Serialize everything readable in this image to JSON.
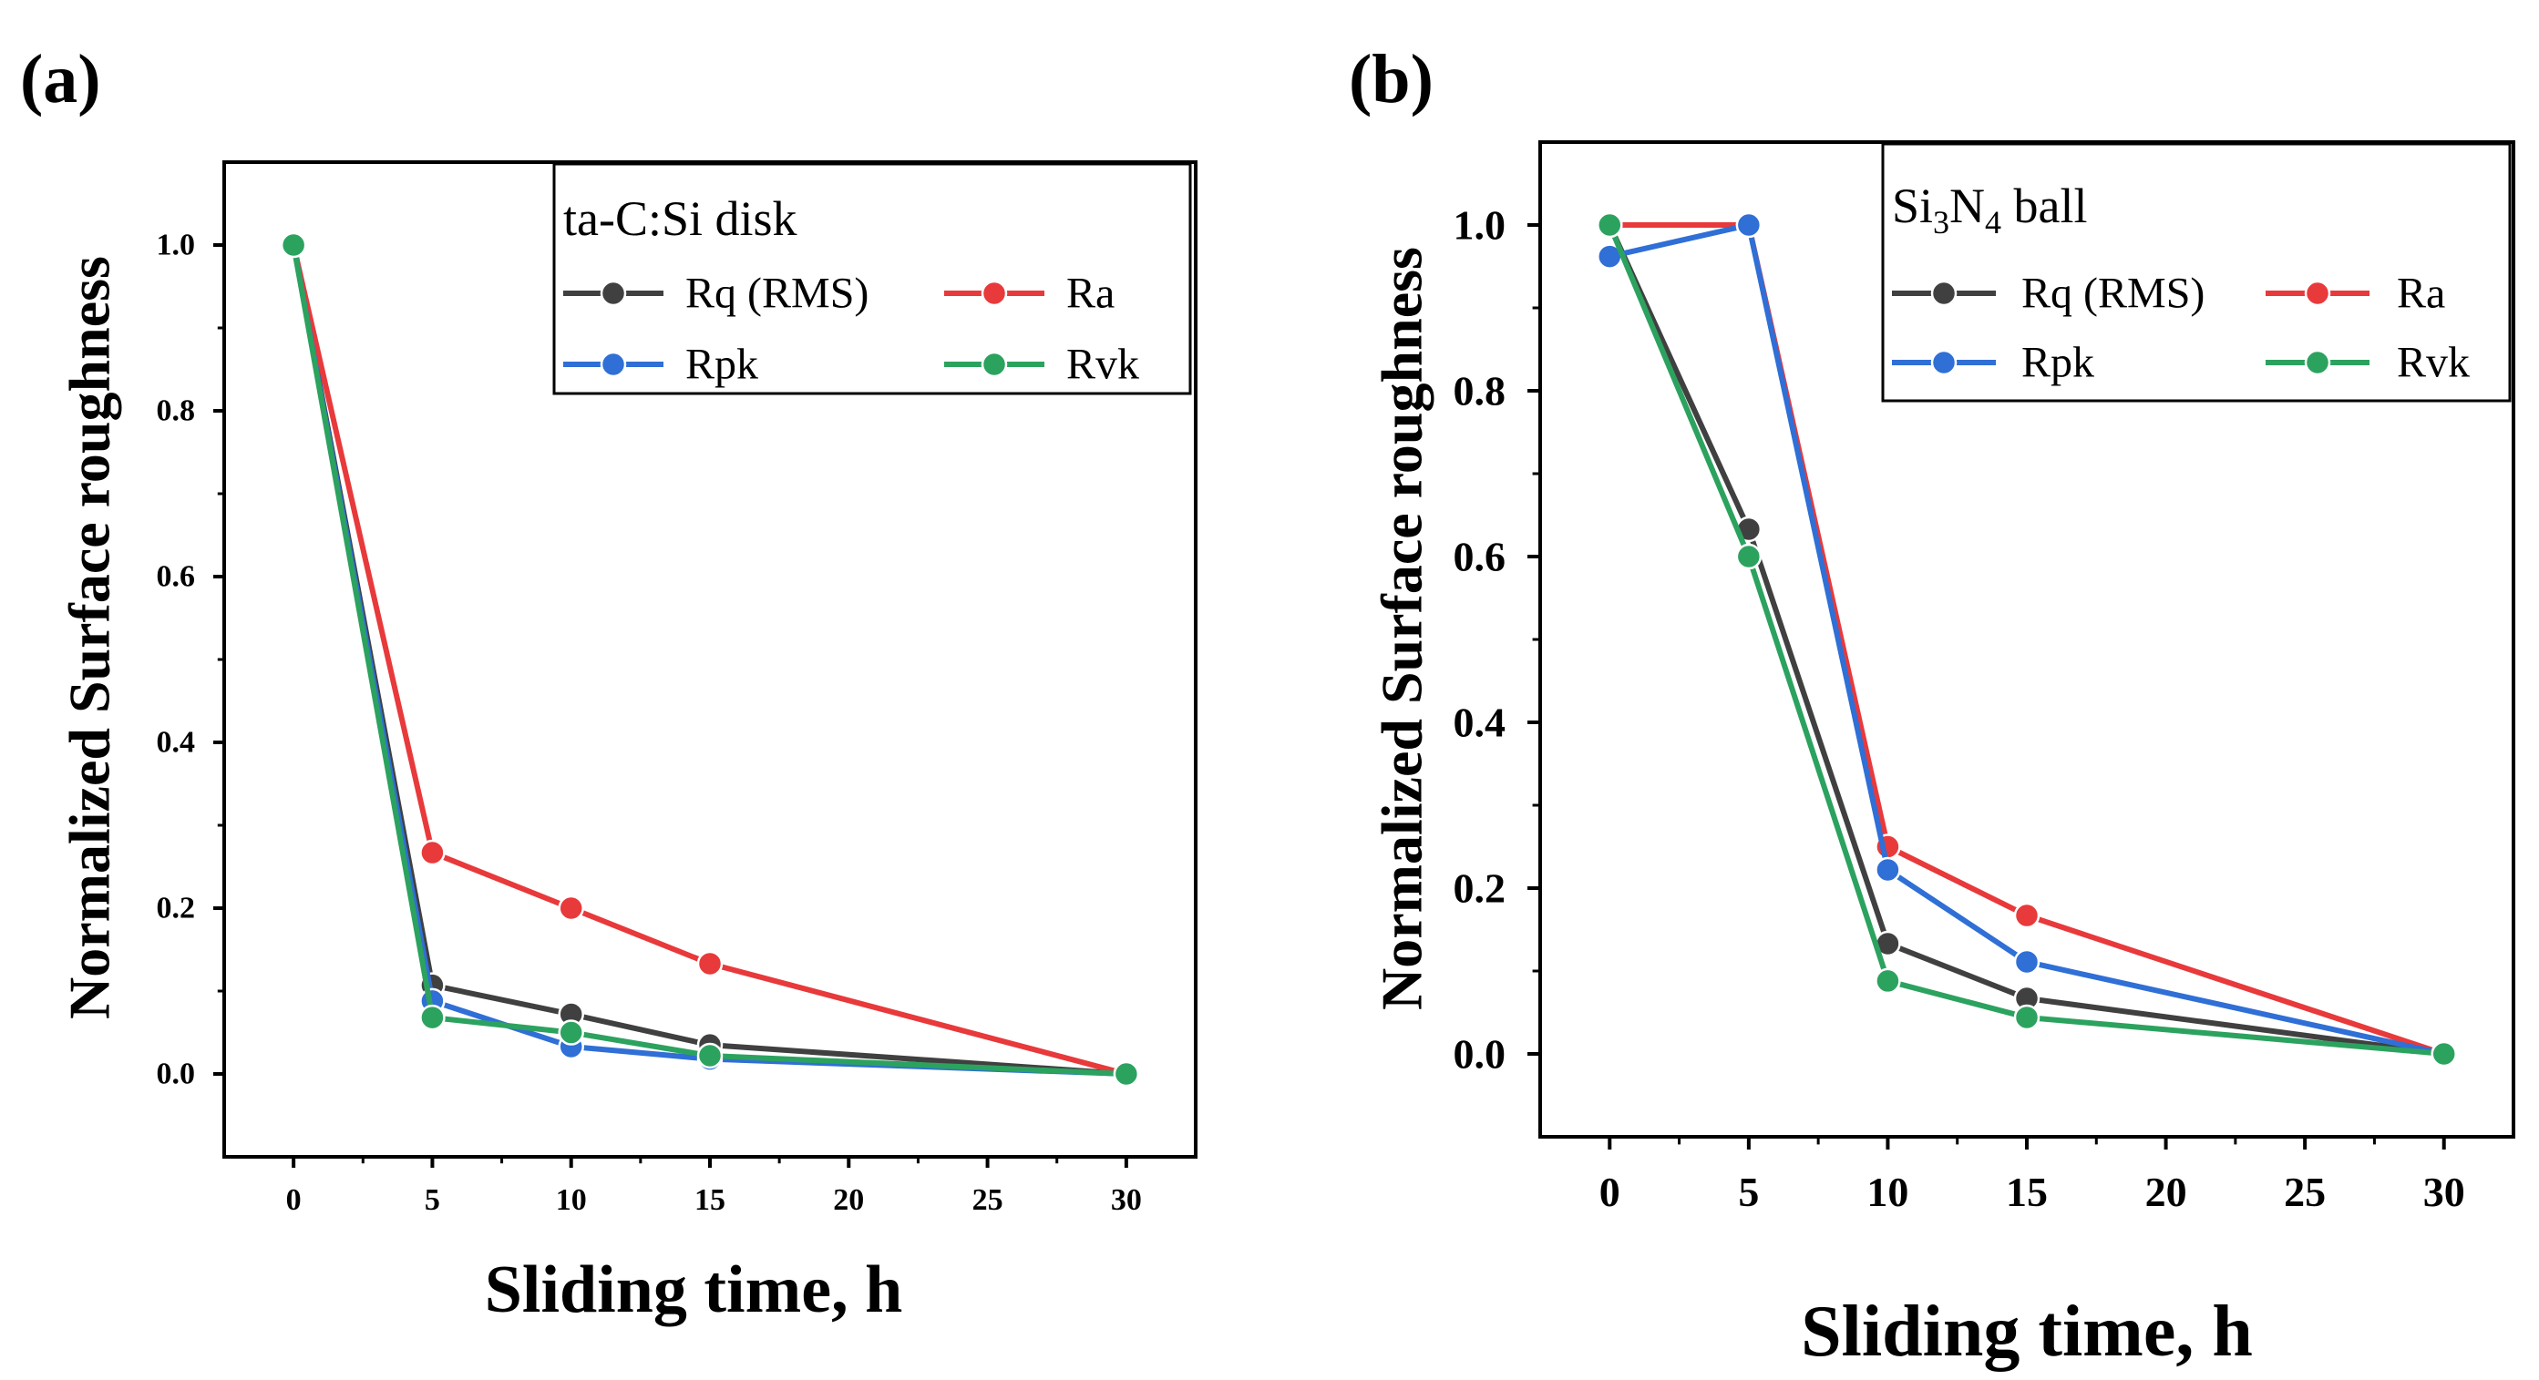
{
  "chart_data": [
    {
      "type": "line",
      "panel_label": "(a)",
      "x": [
        0,
        5,
        10,
        15,
        30
      ],
      "xticks": [
        0,
        5,
        10,
        15,
        20,
        25,
        30
      ],
      "yticks": [
        0.0,
        0.2,
        0.4,
        0.6,
        0.8,
        1.0
      ],
      "xlim": [
        -2.5,
        32.5
      ],
      "ylim": [
        -0.1,
        1.1
      ],
      "xlabel": "Sliding time, h",
      "ylabel": "Normalized Surface roughness",
      "legend_title": "ta-C:Si disk",
      "legend_placement": "top-right",
      "series": [
        {
          "name": "Rq (RMS)",
          "color": "#404040",
          "values": [
            1.0,
            0.107,
            0.072,
            0.035,
            0.0
          ]
        },
        {
          "name": "Ra",
          "color": "#e8393b",
          "values": [
            1.0,
            0.267,
            0.2,
            0.133,
            0.0
          ]
        },
        {
          "name": "Rpk",
          "color": "#2f6fd6",
          "values": [
            1.0,
            0.088,
            0.033,
            0.018,
            0.0
          ]
        },
        {
          "name": "Rvk",
          "color": "#2ca25f",
          "values": [
            1.0,
            0.068,
            0.05,
            0.022,
            0.0
          ]
        }
      ]
    },
    {
      "type": "line",
      "panel_label": "(b)",
      "x": [
        0,
        5,
        10,
        15,
        30
      ],
      "xticks": [
        0,
        5,
        10,
        15,
        20,
        25,
        30
      ],
      "yticks": [
        0.0,
        0.2,
        0.4,
        0.6,
        0.8,
        1.0
      ],
      "xlim": [
        -2.5,
        32.5
      ],
      "ylim": [
        -0.1,
        1.1
      ],
      "xlabel": "Sliding time, h",
      "ylabel": "Normalized Surface roughness",
      "legend_title": {
        "base": "Si",
        "sub1": "3",
        "mid": "N",
        "sub2": "4",
        "tail": " ball"
      },
      "legend_placement": "top-right",
      "series": [
        {
          "name": "Rq (RMS)",
          "color": "#404040",
          "values": [
            1.0,
            0.633,
            0.133,
            0.067,
            0.0
          ]
        },
        {
          "name": "Ra",
          "color": "#e8393b",
          "values": [
            1.0,
            1.0,
            0.25,
            0.167,
            0.0
          ]
        },
        {
          "name": "Rpk",
          "color": "#2f6fd6",
          "values": [
            0.962,
            1.0,
            0.222,
            0.111,
            0.0
          ]
        },
        {
          "name": "Rvk",
          "color": "#2ca25f",
          "values": [
            1.0,
            0.6,
            0.088,
            0.044,
            0.0
          ]
        }
      ]
    }
  ]
}
